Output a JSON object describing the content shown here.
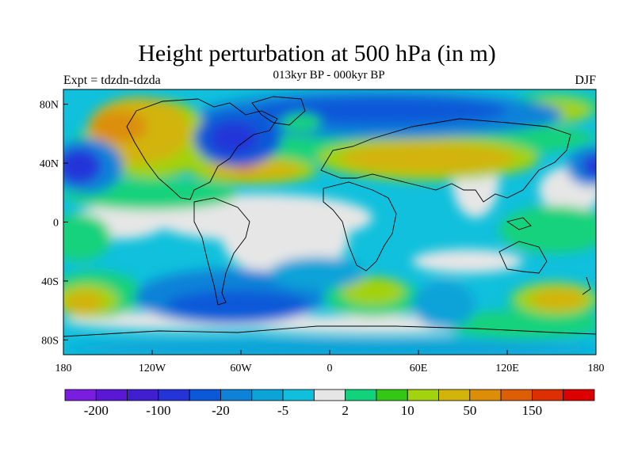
{
  "header": {
    "title": "Height perturbation at 500 hPa (in m)",
    "subtitle": "013kyr BP - 000kyr BP",
    "left_label": "Expt = tdzdn-tdzda",
    "right_label": "DJF"
  },
  "map": {
    "lat_ticks": [
      "80N",
      "40N",
      "0",
      "40S",
      "80S"
    ],
    "lat_values": [
      80,
      40,
      0,
      -40,
      -80
    ],
    "lon_ticks": [
      "180",
      "120W",
      "60W",
      "0",
      "60E",
      "120E",
      "180"
    ],
    "lon_values": [
      -180,
      -120,
      -60,
      0,
      60,
      120,
      180
    ],
    "lon_range": [
      -180,
      180
    ],
    "lat_range": [
      -90,
      90
    ]
  },
  "colorbar": {
    "colors": [
      "#7b1de0",
      "#5a17d6",
      "#3f1fd0",
      "#2434d8",
      "#0b58d8",
      "#0d82d8",
      "#0ba3d8",
      "#10bfdc",
      "#e6e6e6",
      "#12d27c",
      "#33c814",
      "#a3d20e",
      "#d2b40a",
      "#dc8e08",
      "#de5e06",
      "#de2e04",
      "#dc0000"
    ],
    "labels": [
      "-200",
      "-100",
      "-20",
      "-5",
      "2",
      "10",
      "50",
      "150"
    ],
    "label_positions": [
      1,
      3,
      5,
      7,
      9,
      11,
      13,
      15
    ]
  }
}
